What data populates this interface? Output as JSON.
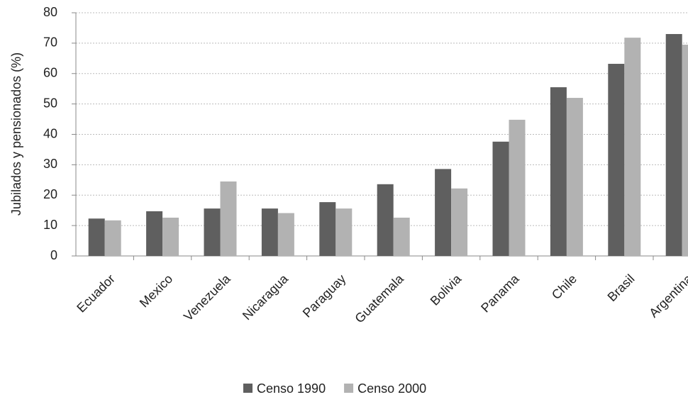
{
  "chart_data": {
    "type": "bar",
    "y_label": "Jubilados y pensionados (%)",
    "categories": [
      "Ecuador",
      "Mexico",
      "Venezuela",
      "Nicaragua",
      "Paraguay",
      "Guatemala",
      "Bolivia",
      "Panama",
      "Chile",
      "Brasil",
      "Argentina"
    ],
    "series": [
      {
        "name": "Censo 1990",
        "color": "#5f5f5f",
        "values": [
          12.3,
          14.7,
          15.6,
          15.6,
          17.7,
          23.6,
          28.6,
          37.6,
          55.5,
          63.2,
          73.0
        ]
      },
      {
        "name": "Censo 2000",
        "color": "#b2b2b2",
        "values": [
          11.7,
          12.6,
          24.5,
          14.1,
          15.6,
          12.6,
          22.2,
          44.8,
          52.0,
          71.8,
          69.5
        ]
      }
    ],
    "ylim": [
      0,
      80
    ],
    "yticks": [
      0,
      10,
      20,
      30,
      40,
      50,
      60,
      70,
      80
    ],
    "grid": true,
    "legend": "bottom"
  }
}
